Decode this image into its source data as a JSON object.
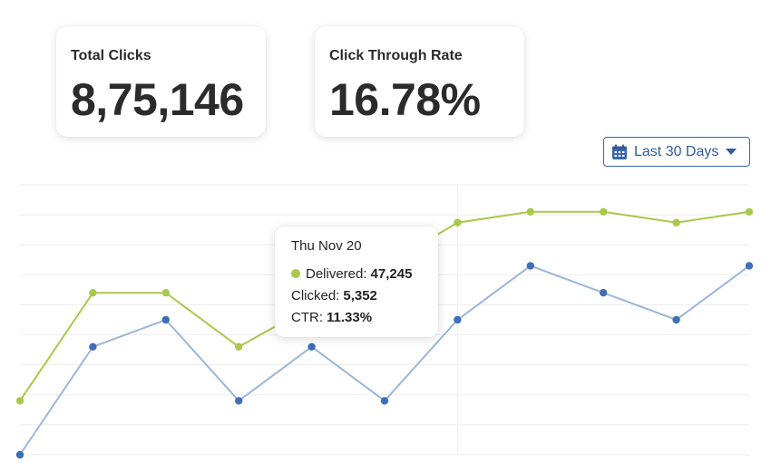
{
  "stats": {
    "total_clicks": {
      "label": "Total Clicks",
      "value": "8,75,146"
    },
    "ctr": {
      "label": "Click Through Rate",
      "value": "16.78%"
    }
  },
  "range_selector": {
    "label": "Last 30 Days",
    "icon": "calendar-icon",
    "caret_icon": "caret-down-icon"
  },
  "tooltip": {
    "date": "Thu Nov 20",
    "delivered_label": "Delivered:",
    "delivered_value": "47,245",
    "clicked_label": "Clicked:",
    "clicked_value": "5,352",
    "ctr_label": "CTR:",
    "ctr_value": "11.33%"
  },
  "colors": {
    "delivered": "#a8c94a",
    "clicked_line": "#9ab7d8",
    "clicked_point": "#3f6fb7",
    "grid": "#eeeeee",
    "accent": "#2f5d9e"
  },
  "chart_data": {
    "type": "line",
    "x": [
      0,
      1,
      2,
      3,
      4,
      5,
      6,
      7,
      8,
      9,
      10
    ],
    "highlight_index": 6,
    "grid": true,
    "y_gridlines": 9,
    "series": [
      {
        "name": "Delivered",
        "values": [
          1.0,
          5.0,
          5.0,
          3.0,
          4.5,
          6.0,
          7.6,
          8.0,
          8.0,
          7.6,
          8.0
        ]
      },
      {
        "name": "Clicked",
        "values": [
          -1.0,
          3.0,
          4.0,
          1.0,
          3.0,
          1.0,
          4.0,
          6.0,
          5.0,
          4.0,
          6.0
        ]
      }
    ],
    "ylim": [
      -1.0,
      9.0
    ]
  }
}
